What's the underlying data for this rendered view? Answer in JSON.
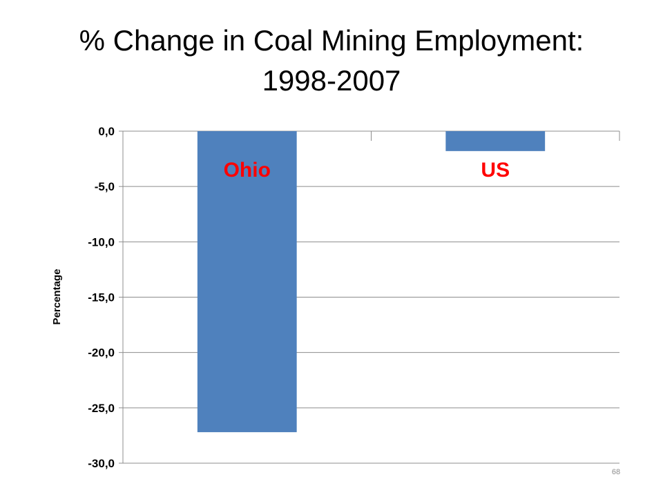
{
  "slide": {
    "title_line1": "% Change in Coal Mining Employment:",
    "title_line2": "1998-2007",
    "page_number": "68"
  },
  "chart_data": {
    "type": "bar",
    "categories": [
      "Ohio",
      "US"
    ],
    "values": [
      -27.2,
      -1.8
    ],
    "title": "% Change in Coal Mining Employment: 1998-2007",
    "xlabel": "",
    "ylabel": "Percentage",
    "ylim": [
      -30.0,
      0.0
    ],
    "yticks": [
      0.0,
      -5.0,
      -10.0,
      -15.0,
      -20.0,
      -25.0,
      -30.0
    ],
    "ytick_labels": [
      "0,0",
      "-5,0",
      "-10,0",
      "-15,0",
      "-20,0",
      "-25,0",
      "-30,0"
    ],
    "grid": true,
    "legend": "none",
    "category_labels_inside_plot": true,
    "colors": {
      "bar": "#4f81bd",
      "category_label": "#ff0000",
      "gridline": "#8c8c8c"
    }
  }
}
